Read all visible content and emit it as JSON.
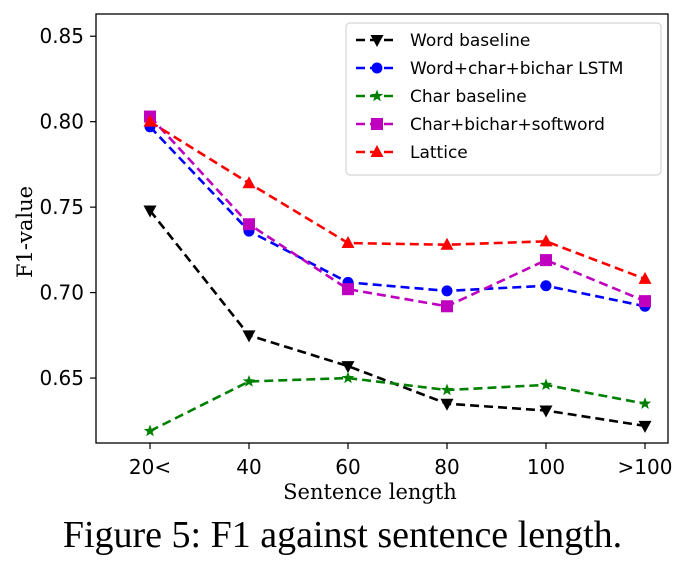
{
  "chart_data": {
    "type": "line",
    "title": "",
    "xlabel": "Sentence length",
    "ylabel": "F1-value",
    "categories": [
      "20<",
      "40",
      "60",
      "80",
      "100",
      ">100"
    ],
    "ylim": [
      0.612,
      0.863
    ],
    "yticks": [
      0.65,
      0.7,
      0.75,
      0.8,
      0.85
    ],
    "ytick_labels": [
      "0.65",
      "0.70",
      "0.75",
      "0.80",
      "0.85"
    ],
    "grid": false,
    "legend_position": "top-right",
    "series": [
      {
        "name": "Word baseline",
        "color": "#000000",
        "marker": "triangle-down",
        "values": [
          0.748,
          0.675,
          0.657,
          0.635,
          0.631,
          0.622
        ]
      },
      {
        "name": "Word+char+bichar LSTM",
        "color": "#0000ff",
        "marker": "circle",
        "values": [
          0.797,
          0.736,
          0.706,
          0.701,
          0.704,
          0.692
        ]
      },
      {
        "name": "Char baseline",
        "color": "#008000",
        "marker": "star",
        "values": [
          0.619,
          0.648,
          0.65,
          0.643,
          0.646,
          0.635
        ]
      },
      {
        "name": "Char+bichar+softword",
        "color": "#bf00bf",
        "marker": "square",
        "values": [
          0.803,
          0.74,
          0.702,
          0.692,
          0.719,
          0.695
        ]
      },
      {
        "name": "Lattice",
        "color": "#ff0000",
        "marker": "triangle-up",
        "values": [
          0.8,
          0.764,
          0.729,
          0.728,
          0.73,
          0.708
        ]
      }
    ]
  },
  "caption": "Figure 5: F1 against sentence length."
}
